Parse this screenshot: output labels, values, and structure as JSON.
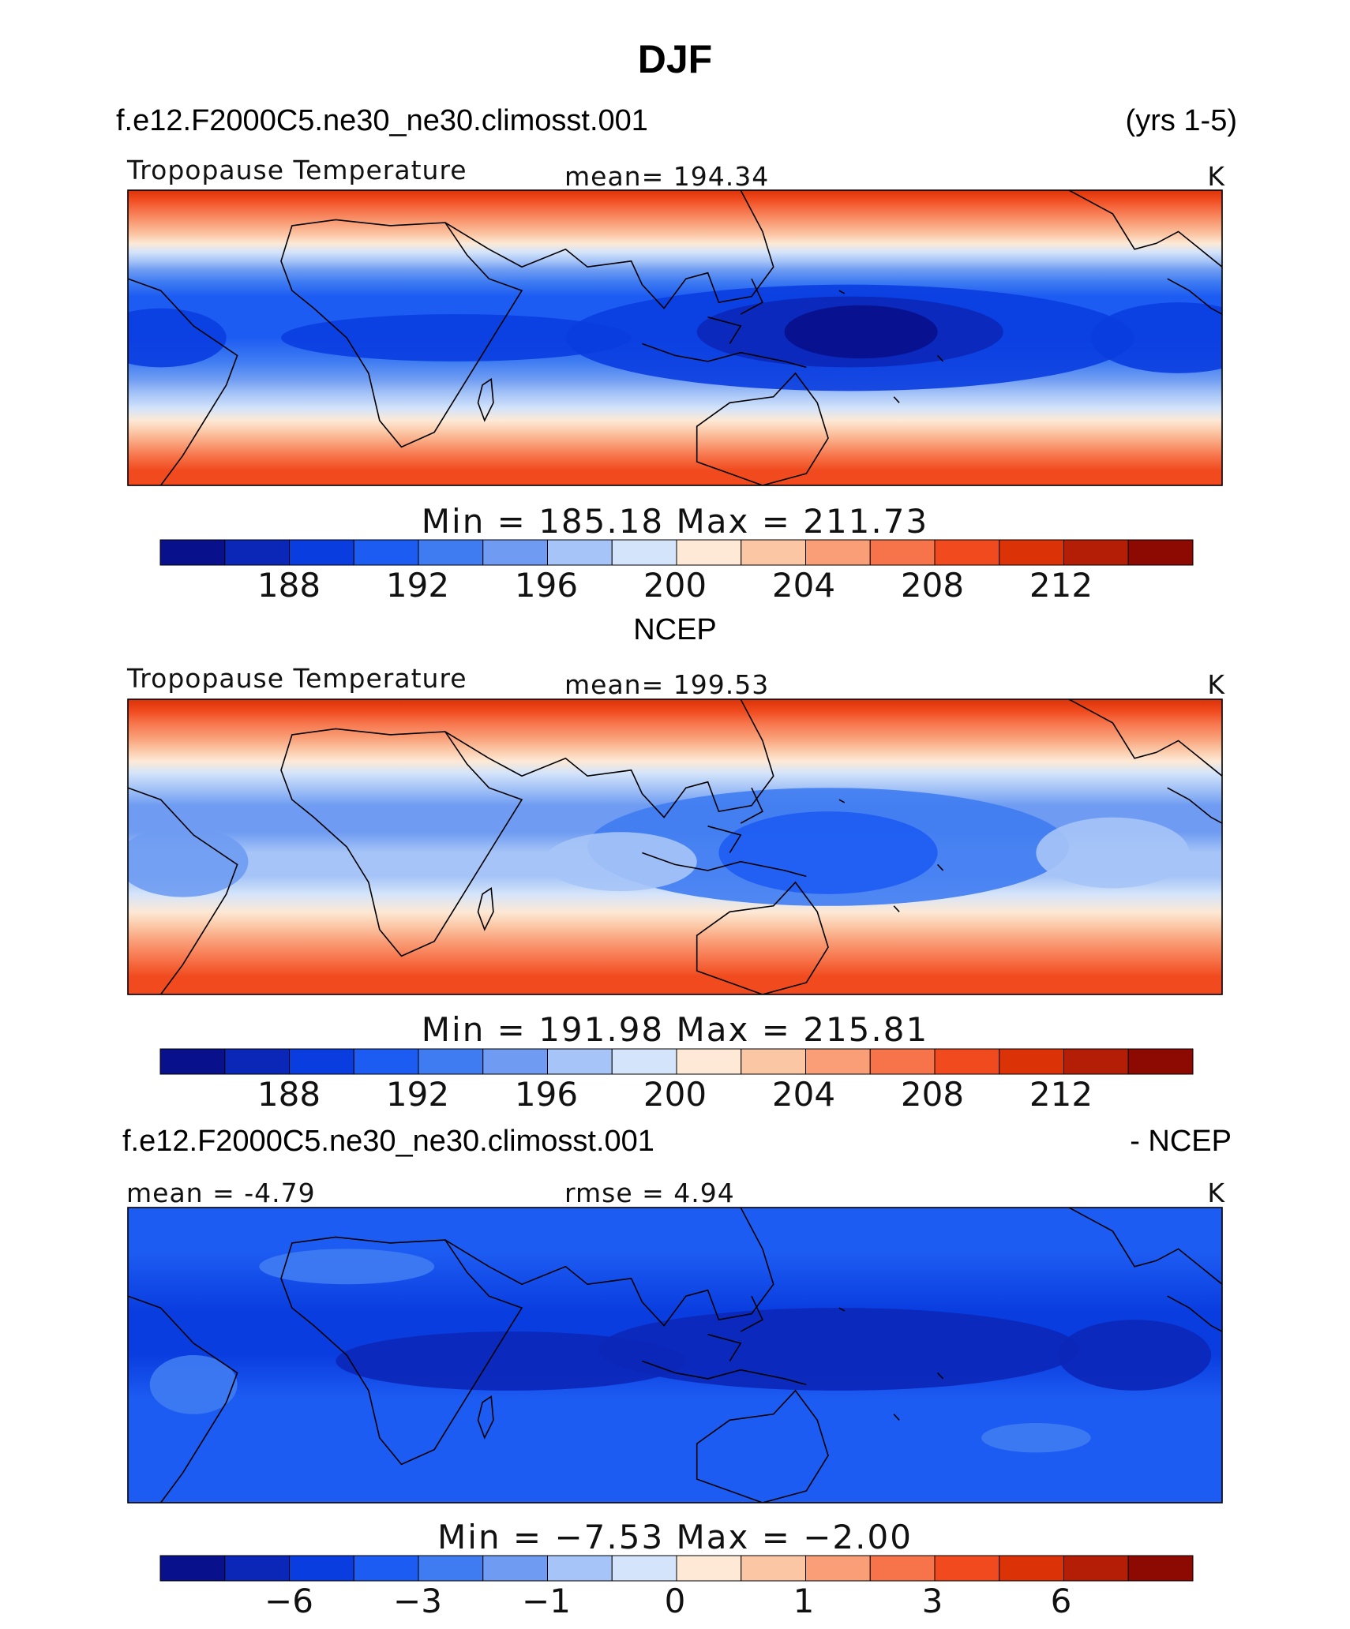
{
  "page_title": "DJF",
  "colors": {
    "palette": [
      "#08108c",
      "#0b27b8",
      "#0a3de0",
      "#1d5cf2",
      "#3f7cf2",
      "#6f9cf2",
      "#a6c4f7",
      "#d4e4fa",
      "#fde9d6",
      "#fbc6a4",
      "#f99e77",
      "#f7744b",
      "#f04a1e",
      "#db3208",
      "#b51e06",
      "#8c0a02"
    ]
  },
  "chart_data": [
    {
      "type": "heatmap",
      "case_label": "f.e12.F2000C5.ne30_ne30.climosst.001",
      "years_label": "(yrs 1-5)",
      "variable": "Tropopause Temperature",
      "mean_label": "mean=  194.34",
      "units": "K",
      "min_max_label": "Min  =  185.18  Max  =  211.73",
      "mean": 194.34,
      "min": 185.18,
      "max": 211.73,
      "colorbar_ticks": [
        "188",
        "192",
        "196",
        "200",
        "204",
        "208",
        "212"
      ],
      "colorbar_levels": [
        186,
        188,
        190,
        192,
        194,
        196,
        198,
        200,
        202,
        204,
        206,
        208,
        210,
        212,
        214
      ]
    },
    {
      "type": "heatmap",
      "case_label": "NCEP",
      "variable": "Tropopause Temperature",
      "mean_label": "mean=  199.53",
      "units": "K",
      "min_max_label": "Min  =  191.98  Max  =  215.81",
      "mean": 199.53,
      "min": 191.98,
      "max": 215.81,
      "colorbar_ticks": [
        "188",
        "192",
        "196",
        "200",
        "204",
        "208",
        "212"
      ],
      "colorbar_levels": [
        186,
        188,
        190,
        192,
        194,
        196,
        198,
        200,
        202,
        204,
        206,
        208,
        210,
        212,
        214
      ]
    },
    {
      "type": "heatmap",
      "case_label": "f.e12.F2000C5.ne30_ne30.climosst.001",
      "diff_label": "- NCEP",
      "mean_label": "mean  =    -4.79",
      "rmse_label": "rmse  =     4.94",
      "units": "K",
      "min_max_label": "Min  =    −7.53  Max  =    −2.00",
      "mean": -4.79,
      "rmse": 4.94,
      "min": -7.53,
      "max": -2.0,
      "colorbar_ticks": [
        "−6",
        "−3",
        "−1",
        "0",
        "1",
        "3",
        "6"
      ]
    }
  ]
}
